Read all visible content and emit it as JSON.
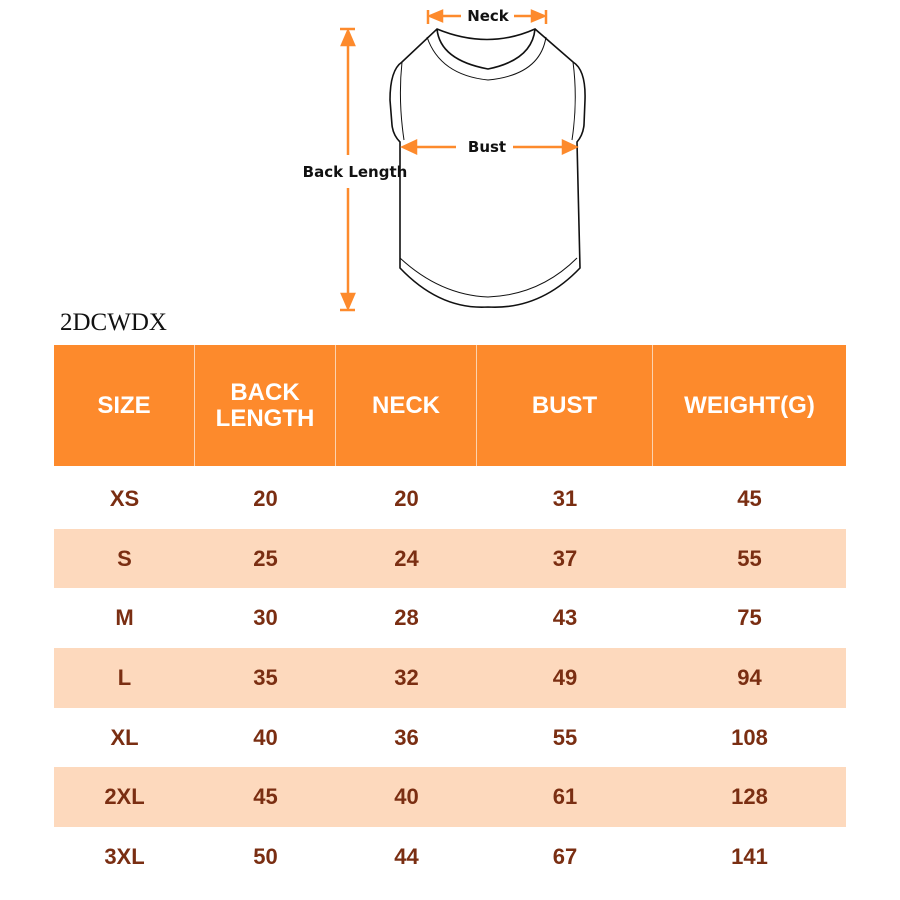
{
  "diagram": {
    "neck_label": "Neck",
    "bust_label": "Bust",
    "back_length_label": "Back Length",
    "arrow_color": "#fd8a2c"
  },
  "product_code": "2DCWDX",
  "table": {
    "header_color": "#fd8a2c",
    "alt_row_color": "#fdd9bd",
    "text_color": "#7a2e12",
    "headers": [
      "SIZE",
      "BACK LENGTH",
      "NECK",
      "BUST",
      "WEIGHT(G)"
    ],
    "rows": [
      [
        "XS",
        "20",
        "20",
        "31",
        "45"
      ],
      [
        "S",
        "25",
        "24",
        "37",
        "55"
      ],
      [
        "M",
        "30",
        "28",
        "43",
        "75"
      ],
      [
        "L",
        "35",
        "32",
        "49",
        "94"
      ],
      [
        "XL",
        "40",
        "36",
        "55",
        "108"
      ],
      [
        "2XL",
        "45",
        "40",
        "61",
        "128"
      ],
      [
        "3XL",
        "50",
        "44",
        "67",
        "141"
      ]
    ]
  }
}
